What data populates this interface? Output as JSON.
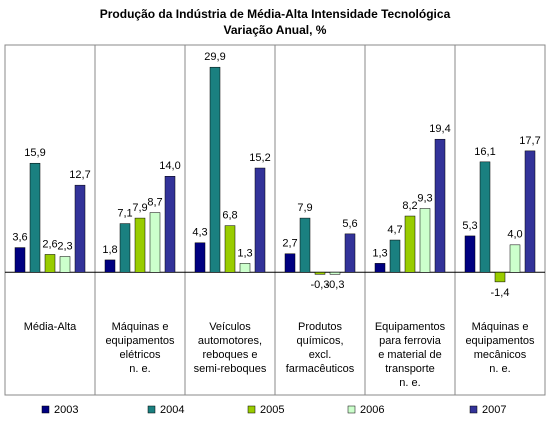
{
  "chart_data": {
    "type": "bar",
    "title": "Produção da Indústria de Média-Alta Intensidade Tecnológica",
    "subtitle": "Variação Anual, %",
    "categories": [
      [
        "Média-Alta"
      ],
      [
        "Máquinas e",
        "equipamentos",
        "elétricos",
        "n. e."
      ],
      [
        "Veículos",
        "automotores,",
        "reboques e",
        "semi-reboques"
      ],
      [
        "Produtos",
        "químicos,",
        "excl.",
        "farmacêuticos"
      ],
      [
        "Equipamentos",
        "para ferrovia",
        "e material de",
        "transporte",
        "n. e."
      ],
      [
        "Máquinas e",
        "equipamentos",
        "mecânicos",
        "n. e."
      ]
    ],
    "series": [
      {
        "name": "2003",
        "color": "#000080",
        "values": [
          3.6,
          1.8,
          4.3,
          2.7,
          1.3,
          5.3
        ],
        "value_labels": [
          "3,6",
          "1,8",
          "4,3",
          "2,7",
          "1,3",
          "5,3"
        ]
      },
      {
        "name": "2004",
        "color": "#1a8080",
        "values": [
          15.9,
          7.1,
          29.9,
          7.9,
          4.7,
          16.1
        ],
        "value_labels": [
          "15,9",
          "7,1",
          "29,9",
          "7,9",
          "4,7",
          "16,1"
        ]
      },
      {
        "name": "2005",
        "color": "#99cc00",
        "values": [
          2.6,
          7.9,
          6.8,
          -0.3,
          8.2,
          -1.4
        ],
        "value_labels": [
          "2,6",
          "7,9",
          "6,8",
          "-0,3",
          "8,2",
          "-1,4"
        ]
      },
      {
        "name": "2006",
        "color": "#ccffcc",
        "values": [
          2.3,
          8.7,
          1.3,
          -0.3,
          9.3,
          4.0
        ],
        "value_labels": [
          "2,3",
          "8,7",
          "1,3",
          "-0,3",
          "9,3",
          "4,0"
        ]
      },
      {
        "name": "2007",
        "color": "#333399",
        "values": [
          12.7,
          14.0,
          15.2,
          5.6,
          19.4,
          17.7
        ],
        "value_labels": [
          "12,7",
          "14,0",
          "15,2",
          "5,6",
          "19,4",
          "17,7"
        ]
      }
    ],
    "ylim": [
      -5.5,
      32.7
    ]
  }
}
